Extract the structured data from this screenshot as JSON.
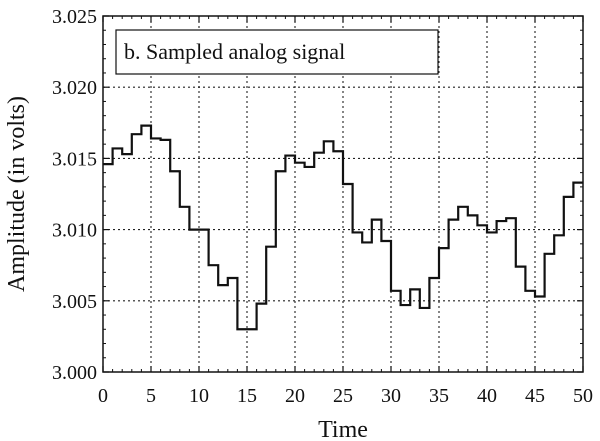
{
  "chart_data": {
    "type": "line",
    "step": true,
    "title": "b. Sampled analog signal",
    "xlabel": "Time",
    "ylabel": "Amplitude (in volts)",
    "xlim": [
      0,
      50
    ],
    "ylim": [
      3.0,
      3.025
    ],
    "xticks": [
      "0",
      "5",
      "10",
      "15",
      "20",
      "25",
      "30",
      "35",
      "40",
      "45",
      "50"
    ],
    "yticks": [
      "3.000",
      "3.005",
      "3.010",
      "3.015",
      "3.020",
      "3.025"
    ],
    "grid": true,
    "grid_style": "dotted",
    "legend_placement": "top-left",
    "line_color": "#111111",
    "series": [
      {
        "x": [
          0,
          1,
          2,
          3,
          4,
          5,
          6,
          7,
          8,
          9,
          10,
          11,
          12,
          13,
          14,
          15,
          16,
          17,
          18,
          19,
          20,
          21,
          22,
          23,
          24,
          25,
          26,
          27,
          28,
          29,
          30,
          31,
          32,
          33,
          34,
          35,
          36,
          37,
          38,
          39,
          40,
          41,
          42,
          43,
          44,
          45,
          46,
          47,
          48,
          49,
          50
        ],
        "values": [
          3.0146,
          3.0157,
          3.0153,
          3.0167,
          3.0173,
          3.0164,
          3.0163,
          3.0141,
          3.0116,
          3.01,
          3.01,
          3.0075,
          3.0061,
          3.0066,
          3.003,
          3.003,
          3.0048,
          3.0088,
          3.0141,
          3.0152,
          3.0147,
          3.0144,
          3.0154,
          3.0162,
          3.0155,
          3.0132,
          3.0098,
          3.0091,
          3.0107,
          3.0092,
          3.0057,
          3.0047,
          3.0058,
          3.0045,
          3.0066,
          3.0087,
          3.0107,
          3.0116,
          3.011,
          3.0103,
          3.0098,
          3.0106,
          3.0108,
          3.0074,
          3.0057,
          3.0053,
          3.0083,
          3.0096,
          3.0123,
          3.0133,
          3.0133
        ]
      }
    ]
  }
}
